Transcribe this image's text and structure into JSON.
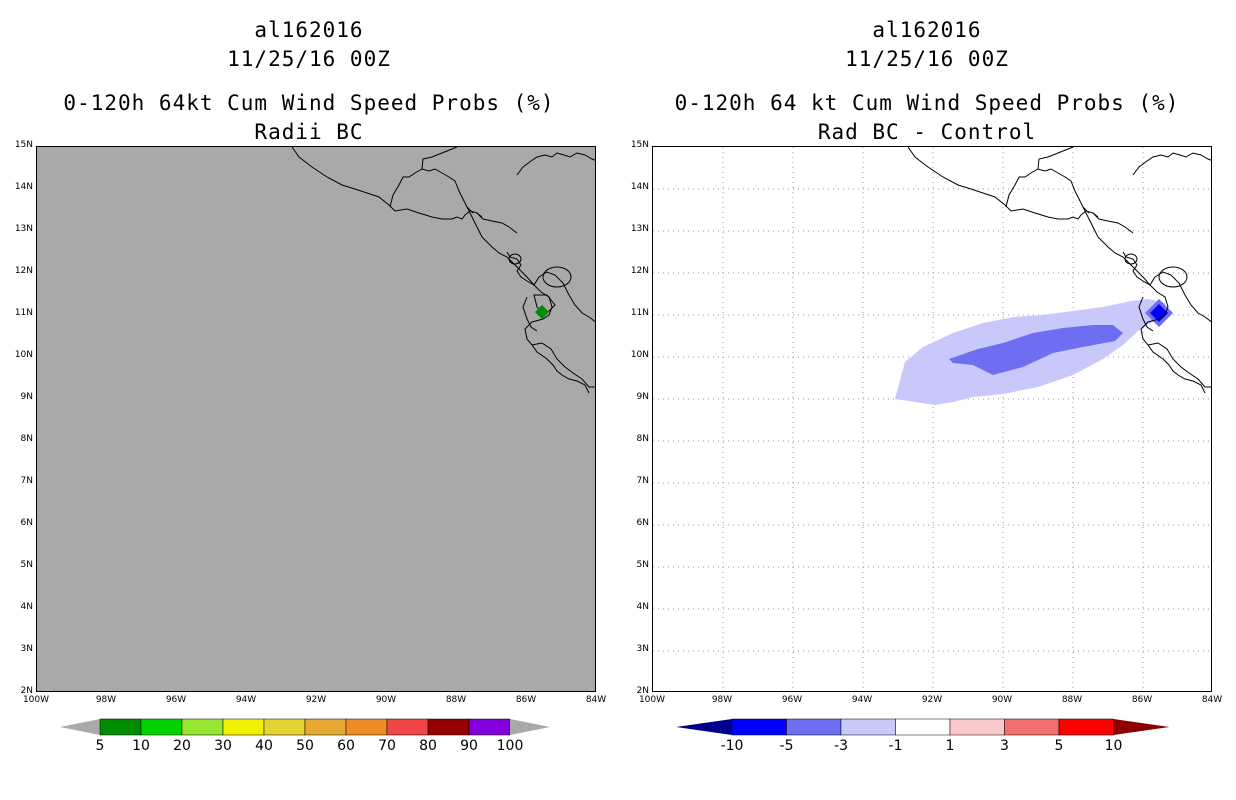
{
  "left_panel": {
    "storm_id": "al162016",
    "datetime": "11/25/16 00Z",
    "product_title": "0-120h 64kt Cum Wind Speed Probs (%)",
    "subtitle": "Radii BC",
    "lat_labels": [
      "15N",
      "14N",
      "13N",
      "12N",
      "11N",
      "10N",
      "9N",
      "8N",
      "7N",
      "6N",
      "5N",
      "4N",
      "3N",
      "2N"
    ],
    "lon_labels": [
      "100W",
      "98W",
      "96W",
      "94W",
      "92W",
      "90W",
      "88W",
      "86W",
      "84W"
    ],
    "colorbar": {
      "colors": [
        "#008c00",
        "#00d200",
        "#96e632",
        "#f0f000",
        "#e6d232",
        "#e6aa32",
        "#f08c28",
        "#f04646",
        "#960000",
        "#8200dc"
      ],
      "labels": [
        "5",
        "10",
        "20",
        "30",
        "40",
        "50",
        "60",
        "70",
        "80",
        "90",
        "100"
      ],
      "end_color": "#a9a9a9"
    }
  },
  "right_panel": {
    "storm_id": "al162016",
    "datetime": "11/25/16 00Z",
    "product_title": "0-120h 64 kt Cum Wind Speed Probs (%)",
    "subtitle": "Rad BC - Control",
    "lat_labels": [
      "15N",
      "14N",
      "13N",
      "12N",
      "11N",
      "10N",
      "9N",
      "8N",
      "7N",
      "6N",
      "5N",
      "4N",
      "3N",
      "2N"
    ],
    "lon_labels": [
      "100W",
      "98W",
      "96W",
      "94W",
      "92W",
      "90W",
      "88W",
      "86W",
      "84W"
    ],
    "colorbar": {
      "colors": [
        "#0000ff",
        "#6e6ef0",
        "#c8c8fa",
        "#ffffff",
        "#fac8c8",
        "#f06e6e",
        "#ff0000"
      ],
      "labels": [
        "-10",
        "-5",
        "-3",
        "-1",
        "1",
        "3",
        "5",
        "10"
      ],
      "left_end_color": "#00008c",
      "right_end_color": "#8c0000"
    }
  }
}
